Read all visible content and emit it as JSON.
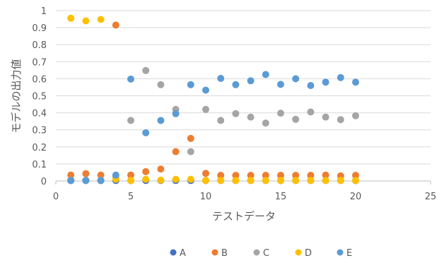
{
  "chart_data": {
    "type": "scatter",
    "xlabel": "テストデータ",
    "ylabel": "モデルの出力値",
    "xlim": [
      0,
      25
    ],
    "ylim": [
      0,
      1
    ],
    "x_ticks": [
      "0",
      "5",
      "10",
      "15",
      "20",
      "25"
    ],
    "y_ticks": [
      "0",
      "0.1",
      "0.2",
      "0.3",
      "0.4",
      "0.5",
      "0.6",
      "0.7",
      "0.8",
      "0.9",
      "1"
    ],
    "grid": "horizontal",
    "legend_position": "bottom",
    "series": [
      {
        "name": "A",
        "color": "#4472C4",
        "points": [
          [
            1,
            0.003
          ],
          [
            2,
            0.003
          ],
          [
            3,
            0.003
          ],
          [
            4,
            0.003
          ],
          [
            5,
            0.003
          ],
          [
            6,
            0.003
          ],
          [
            7,
            0.003
          ],
          [
            8,
            0.003
          ],
          [
            9,
            0.003
          ],
          [
            10,
            0.003
          ],
          [
            11,
            0.003
          ],
          [
            12,
            0.003
          ],
          [
            13,
            0.003
          ],
          [
            14,
            0.003
          ],
          [
            15,
            0.003
          ],
          [
            16,
            0.003
          ],
          [
            17,
            0.003
          ],
          [
            18,
            0.003
          ],
          [
            19,
            0.003
          ],
          [
            20,
            0.003
          ]
        ]
      },
      {
        "name": "B",
        "color": "#ED7D31",
        "points": [
          [
            1,
            0.035
          ],
          [
            2,
            0.043
          ],
          [
            3,
            0.035
          ],
          [
            4,
            0.915
          ],
          [
            5,
            0.035
          ],
          [
            6,
            0.055
          ],
          [
            7,
            0.07
          ],
          [
            8,
            0.172
          ],
          [
            9,
            0.25
          ],
          [
            10,
            0.045
          ],
          [
            11,
            0.033
          ],
          [
            12,
            0.033
          ],
          [
            13,
            0.033
          ],
          [
            14,
            0.033
          ],
          [
            15,
            0.033
          ],
          [
            16,
            0.033
          ],
          [
            17,
            0.033
          ],
          [
            18,
            0.035
          ],
          [
            19,
            0.03
          ],
          [
            20,
            0.033
          ]
        ]
      },
      {
        "name": "C",
        "color": "#A5A5A5",
        "points": [
          [
            1,
            0.005
          ],
          [
            2,
            0.005
          ],
          [
            3,
            0.005
          ],
          [
            4,
            0.02
          ],
          [
            5,
            0.355
          ],
          [
            6,
            0.648
          ],
          [
            7,
            0.565
          ],
          [
            8,
            0.42
          ],
          [
            9,
            0.172
          ],
          [
            10,
            0.42
          ],
          [
            11,
            0.355
          ],
          [
            12,
            0.395
          ],
          [
            13,
            0.375
          ],
          [
            14,
            0.34
          ],
          [
            15,
            0.398
          ],
          [
            16,
            0.362
          ],
          [
            17,
            0.405
          ],
          [
            18,
            0.375
          ],
          [
            19,
            0.36
          ],
          [
            20,
            0.383
          ]
        ]
      },
      {
        "name": "D",
        "color": "#FFC000",
        "points": [
          [
            1,
            0.955
          ],
          [
            2,
            0.94
          ],
          [
            3,
            0.948
          ],
          [
            4,
            0.01
          ],
          [
            5,
            0.003
          ],
          [
            6,
            0.01
          ],
          [
            7,
            0.005
          ],
          [
            8,
            0.01
          ],
          [
            9,
            0.01
          ],
          [
            10,
            0.003
          ],
          [
            11,
            0.003
          ],
          [
            12,
            0.003
          ],
          [
            13,
            0.003
          ],
          [
            14,
            0.003
          ],
          [
            15,
            0.003
          ],
          [
            16,
            0.003
          ],
          [
            17,
            0.003
          ],
          [
            18,
            0.003
          ],
          [
            19,
            0.003
          ],
          [
            20,
            0.003
          ]
        ]
      },
      {
        "name": "E",
        "color": "#5B9BD5",
        "points": [
          [
            1,
            0.002
          ],
          [
            2,
            0.002
          ],
          [
            3,
            0.002
          ],
          [
            4,
            0.035
          ],
          [
            5,
            0.598
          ],
          [
            6,
            0.283
          ],
          [
            7,
            0.355
          ],
          [
            8,
            0.395
          ],
          [
            9,
            0.565
          ],
          [
            10,
            0.533
          ],
          [
            11,
            0.602
          ],
          [
            12,
            0.565
          ],
          [
            13,
            0.588
          ],
          [
            14,
            0.625
          ],
          [
            15,
            0.567
          ],
          [
            16,
            0.6
          ],
          [
            17,
            0.56
          ],
          [
            18,
            0.58
          ],
          [
            19,
            0.607
          ],
          [
            20,
            0.58
          ]
        ]
      }
    ]
  }
}
